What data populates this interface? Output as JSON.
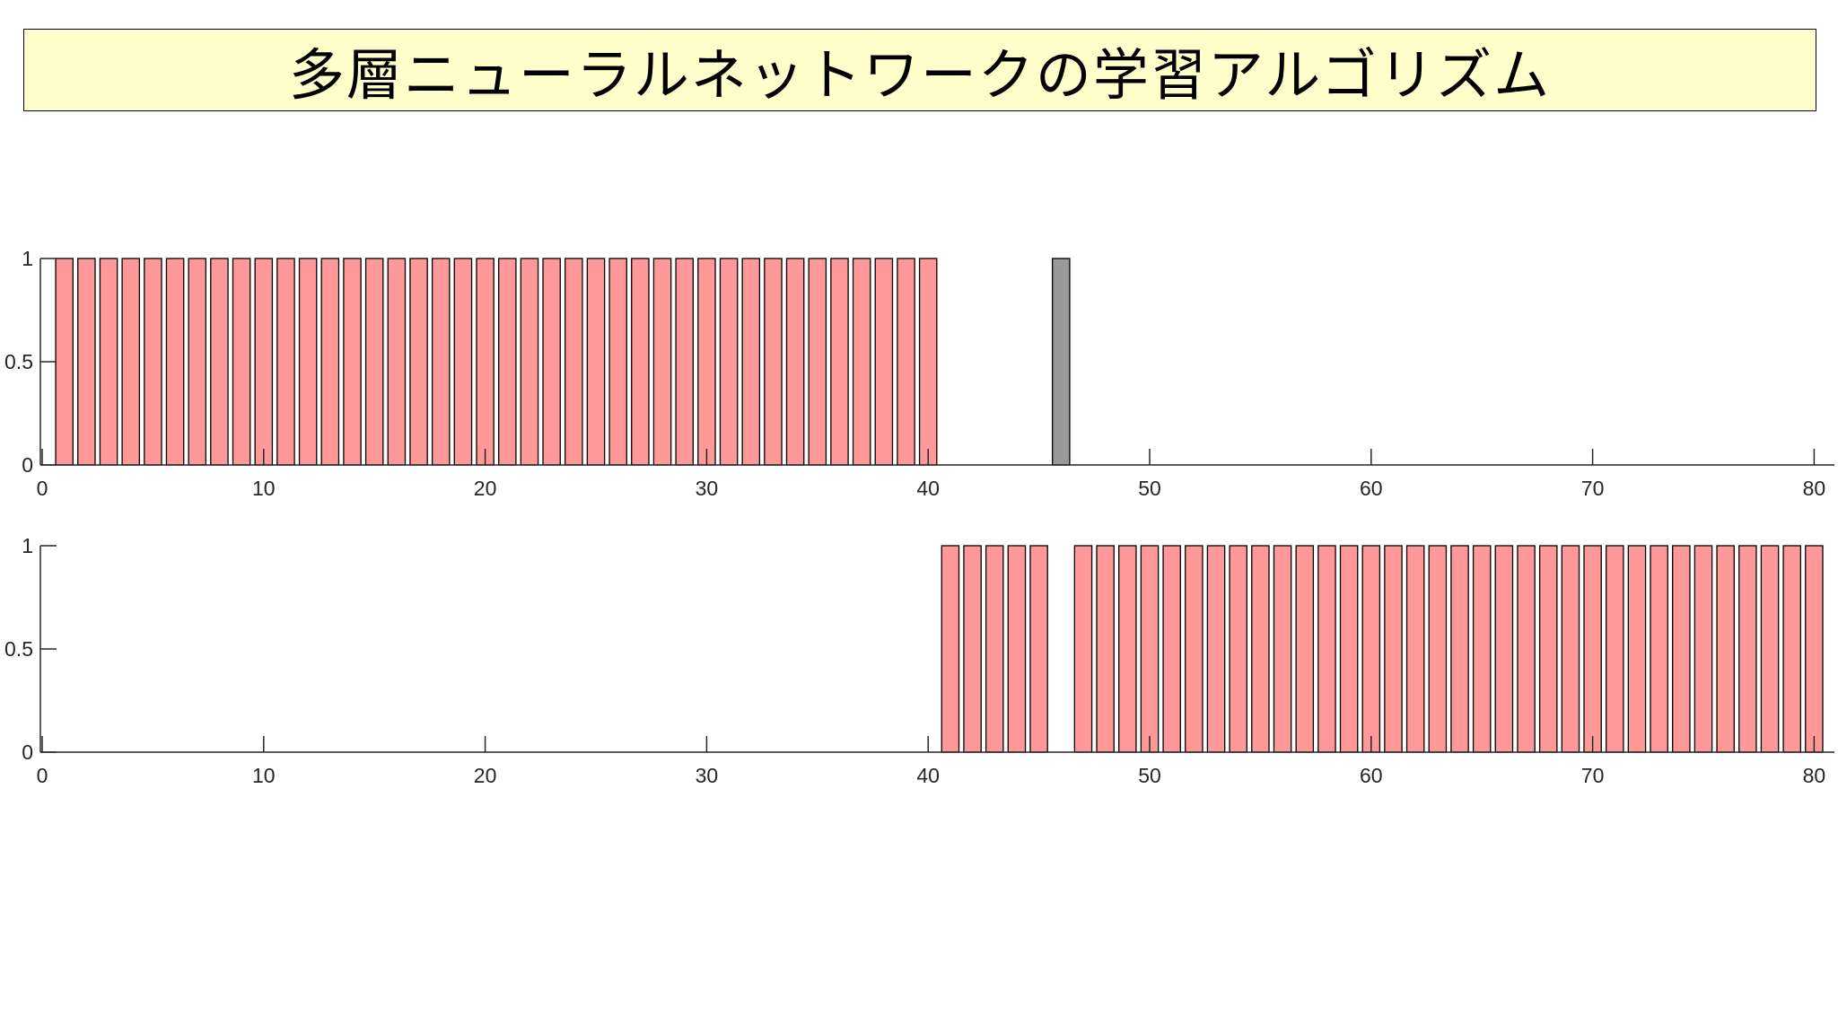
{
  "title": "多層ニューラルネットワークの学習アルゴリズム",
  "colors": {
    "title_background": "#ffffcc",
    "bar_pink": "#ff9999",
    "bar_gray": "#999999",
    "bar_edge": "#000000",
    "axis": "#262626"
  },
  "chart_data": [
    {
      "type": "bar",
      "x": [
        1,
        2,
        3,
        4,
        5,
        6,
        7,
        8,
        9,
        10,
        11,
        12,
        13,
        14,
        15,
        16,
        17,
        18,
        19,
        20,
        21,
        22,
        23,
        24,
        25,
        26,
        27,
        28,
        29,
        30,
        31,
        32,
        33,
        34,
        35,
        36,
        37,
        38,
        39,
        40,
        46
      ],
      "values": [
        1,
        1,
        1,
        1,
        1,
        1,
        1,
        1,
        1,
        1,
        1,
        1,
        1,
        1,
        1,
        1,
        1,
        1,
        1,
        1,
        1,
        1,
        1,
        1,
        1,
        1,
        1,
        1,
        1,
        1,
        1,
        1,
        1,
        1,
        1,
        1,
        1,
        1,
        1,
        1,
        1
      ],
      "bar_colors": [
        "#ff9999",
        "#ff9999",
        "#ff9999",
        "#ff9999",
        "#ff9999",
        "#ff9999",
        "#ff9999",
        "#ff9999",
        "#ff9999",
        "#ff9999",
        "#ff9999",
        "#ff9999",
        "#ff9999",
        "#ff9999",
        "#ff9999",
        "#ff9999",
        "#ff9999",
        "#ff9999",
        "#ff9999",
        "#ff9999",
        "#ff9999",
        "#ff9999",
        "#ff9999",
        "#ff9999",
        "#ff9999",
        "#ff9999",
        "#ff9999",
        "#ff9999",
        "#ff9999",
        "#ff9999",
        "#ff9999",
        "#ff9999",
        "#ff9999",
        "#ff9999",
        "#ff9999",
        "#ff9999",
        "#ff9999",
        "#ff9999",
        "#ff9999",
        "#ff9999",
        "#999999"
      ],
      "xlim": [
        0,
        81
      ],
      "ylim": [
        0,
        1
      ],
      "xticks": [
        "0",
        "10",
        "20",
        "30",
        "40",
        "50",
        "60",
        "70",
        "80"
      ],
      "xtick_values": [
        0,
        10,
        20,
        30,
        40,
        50,
        60,
        70,
        80
      ],
      "yticks": [
        "0",
        "0.5",
        "1"
      ],
      "ytick_values": [
        0,
        0.5,
        1
      ],
      "grid": false
    },
    {
      "type": "bar",
      "x": [
        41,
        42,
        43,
        44,
        45,
        47,
        48,
        49,
        50,
        51,
        52,
        53,
        54,
        55,
        56,
        57,
        58,
        59,
        60,
        61,
        62,
        63,
        64,
        65,
        66,
        67,
        68,
        69,
        70,
        71,
        72,
        73,
        74,
        75,
        76,
        77,
        78,
        79,
        80
      ],
      "values": [
        1,
        1,
        1,
        1,
        1,
        1,
        1,
        1,
        1,
        1,
        1,
        1,
        1,
        1,
        1,
        1,
        1,
        1,
        1,
        1,
        1,
        1,
        1,
        1,
        1,
        1,
        1,
        1,
        1,
        1,
        1,
        1,
        1,
        1,
        1,
        1,
        1,
        1,
        1
      ],
      "bar_colors": [
        "#ff9999",
        "#ff9999",
        "#ff9999",
        "#ff9999",
        "#ff9999",
        "#ff9999",
        "#ff9999",
        "#ff9999",
        "#ff9999",
        "#ff9999",
        "#ff9999",
        "#ff9999",
        "#ff9999",
        "#ff9999",
        "#ff9999",
        "#ff9999",
        "#ff9999",
        "#ff9999",
        "#ff9999",
        "#ff9999",
        "#ff9999",
        "#ff9999",
        "#ff9999",
        "#ff9999",
        "#ff9999",
        "#ff9999",
        "#ff9999",
        "#ff9999",
        "#ff9999",
        "#ff9999",
        "#ff9999",
        "#ff9999",
        "#ff9999",
        "#ff9999",
        "#ff9999",
        "#ff9999",
        "#ff9999",
        "#ff9999",
        "#ff9999"
      ],
      "xlim": [
        0,
        81
      ],
      "ylim": [
        0,
        1
      ],
      "xticks": [
        "0",
        "10",
        "20",
        "30",
        "40",
        "50",
        "60",
        "70",
        "80"
      ],
      "xtick_values": [
        0,
        10,
        20,
        30,
        40,
        50,
        60,
        70,
        80
      ],
      "yticks": [
        "0",
        "0.5",
        "1"
      ],
      "ytick_values": [
        0,
        0.5,
        1
      ],
      "grid": false
    }
  ]
}
